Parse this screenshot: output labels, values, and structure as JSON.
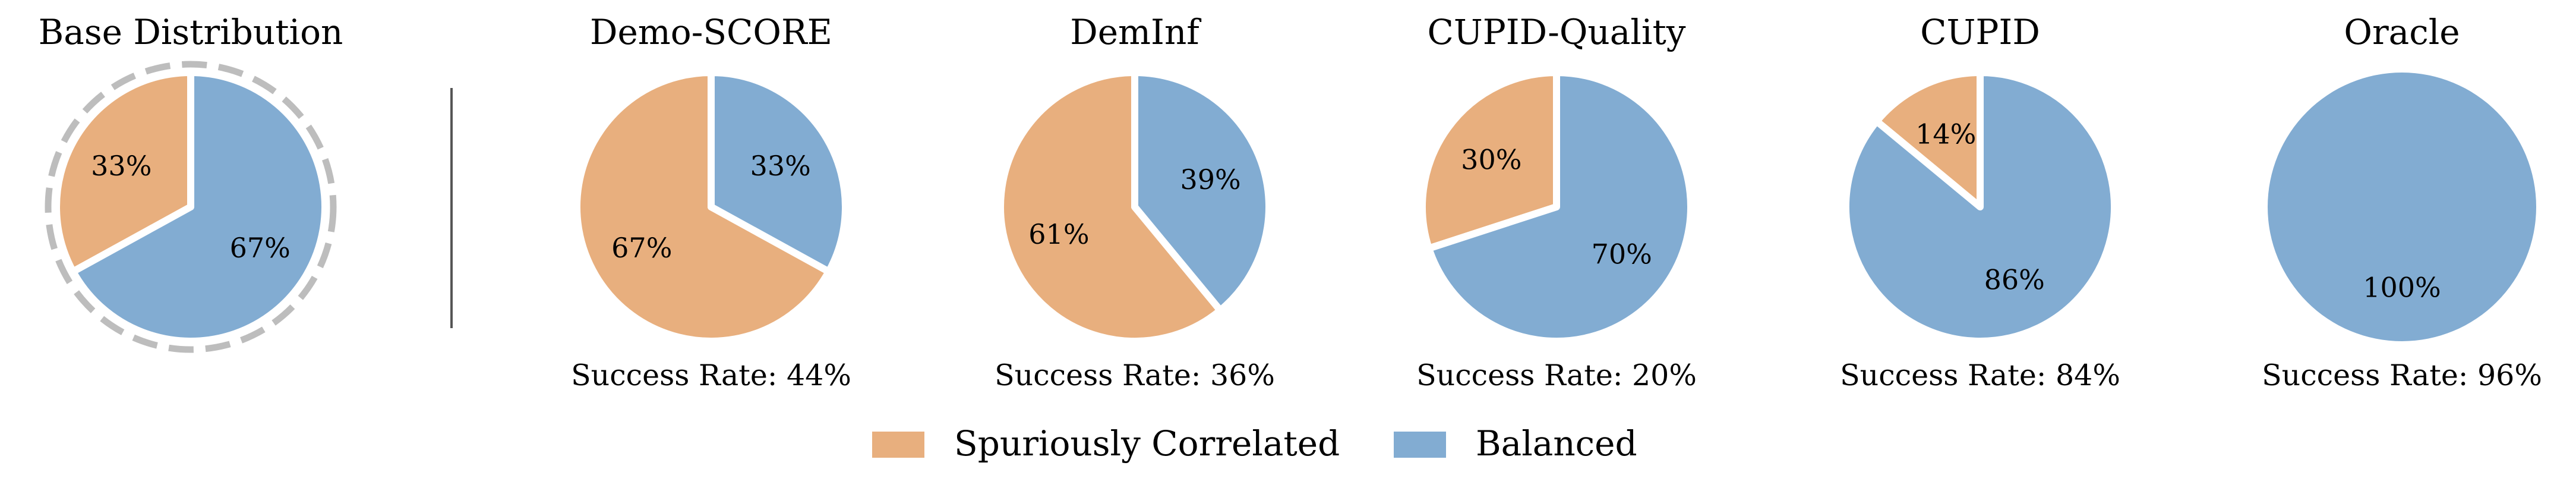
{
  "chart_data": [
    {
      "type": "pie",
      "title": "Base Distribution",
      "categories": [
        "Spuriously Correlated",
        "Balanced"
      ],
      "values": [
        33,
        67
      ],
      "labels": [
        "33%",
        "67%"
      ],
      "caption": "",
      "dashed_outline": true
    },
    {
      "type": "pie",
      "title": "Demo-SCORE",
      "categories": [
        "Spuriously Correlated",
        "Balanced"
      ],
      "values": [
        67,
        33
      ],
      "labels": [
        "67%",
        "33%"
      ],
      "caption": "Success Rate: 44%",
      "success_rate": 44
    },
    {
      "type": "pie",
      "title": "DemInf",
      "categories": [
        "Spuriously Correlated",
        "Balanced"
      ],
      "values": [
        61,
        39
      ],
      "labels": [
        "61%",
        "39%"
      ],
      "caption": "Success Rate: 36%",
      "success_rate": 36
    },
    {
      "type": "pie",
      "title": "CUPID-Quality",
      "categories": [
        "Spuriously Correlated",
        "Balanced"
      ],
      "values": [
        30,
        70
      ],
      "labels": [
        "30%",
        "70%"
      ],
      "caption": "Success Rate: 20%",
      "success_rate": 20
    },
    {
      "type": "pie",
      "title": "CUPID",
      "categories": [
        "Spuriously Correlated",
        "Balanced"
      ],
      "values": [
        14,
        86
      ],
      "labels": [
        "14%",
        "86%"
      ],
      "caption": "Success Rate: 84%",
      "success_rate": 84
    },
    {
      "type": "pie",
      "title": "Oracle",
      "categories": [
        "Spuriously Correlated",
        "Balanced"
      ],
      "values": [
        0,
        100
      ],
      "labels": [
        "",
        "100%"
      ],
      "caption": "Success Rate: 96%",
      "success_rate": 96
    }
  ],
  "legend": {
    "placement": "bottom-center",
    "items": [
      {
        "label": "Spuriously Correlated",
        "color": "#e8af7e"
      },
      {
        "label": "Balanced",
        "color": "#82acd2"
      }
    ]
  },
  "colors": {
    "Spuriously Correlated": "#e8af7e",
    "Balanced": "#82acd2",
    "outline": "#bdbdbd",
    "divider": "#555555"
  }
}
